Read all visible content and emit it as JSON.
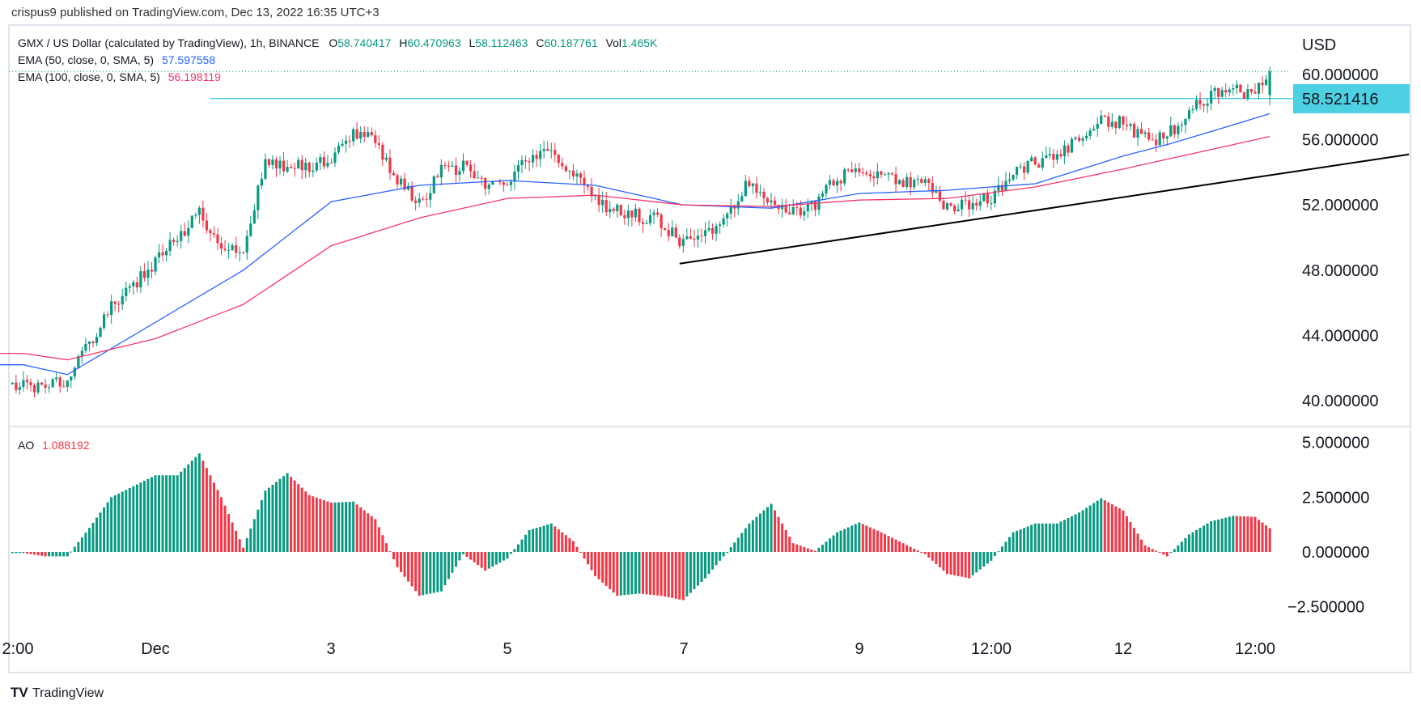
{
  "header": {
    "published": "crispus9 published on TradingView.com, Dec 13, 2022 16:35 UTC+3"
  },
  "legend": {
    "symbol": "GMX / US Dollar (calculated by TradingView), 1h, BINANCE",
    "open_label": "O",
    "open": "58.740417",
    "high_label": "H",
    "high": "60.470963",
    "low_label": "L",
    "low": "58.112463",
    "close_label": "C",
    "close": "60.187761",
    "vol_label": "Vol",
    "vol": "1.465K",
    "ema50_label": "EMA (50, close, 0, SMA, 5)",
    "ema50_value": "57.597558",
    "ema100_label": "EMA (100, close, 0, SMA, 5)",
    "ema100_value": "56.198119",
    "ao_label": "AO",
    "ao_value": "1.088192"
  },
  "price_axis": {
    "currency": "USD",
    "ticks": [
      "60.000000",
      "56.000000",
      "52.000000",
      "48.000000",
      "44.000000",
      "40.000000"
    ],
    "last_price_label": "58.521416"
  },
  "ao_axis": {
    "ticks": [
      "5.000000",
      "2.500000",
      "0.000000",
      "−2.500000"
    ]
  },
  "time_axis": {
    "ticks": [
      "2:00",
      "Dec",
      "3",
      "5",
      "7",
      "9",
      "12:00",
      "12",
      "12:00"
    ]
  },
  "footer": {
    "brand": "TradingView"
  },
  "colors": {
    "up": "#089981",
    "down": "#f23645",
    "ema50": "#2962ff",
    "ema100": "#f23669",
    "hline": "#4dd0e1",
    "trendline": "#000000",
    "text": "#131722"
  },
  "chart_data": {
    "type": "candlestick",
    "title": "GMX / US Dollar (calculated by TradingView), 1h, BINANCE",
    "interval": "1h",
    "ylabel": "USD",
    "ylim": [
      38.3,
      62.2
    ],
    "grid": false,
    "last_bar": {
      "time": "2022-12-13 16:00",
      "open": 58.740417,
      "high": 60.470963,
      "low": 58.112463,
      "close": 60.187761
    },
    "close_series": {
      "time": [
        "2022-11-29 12:00",
        "2022-11-29 18:00",
        "2022-11-30 00:00",
        "2022-11-30 06:00",
        "2022-11-30 12:00",
        "2022-11-30 18:00",
        "2022-12-01 00:00",
        "2022-12-01 06:00",
        "2022-12-01 12:00",
        "2022-12-01 18:00",
        "2022-12-02 00:00",
        "2022-12-02 06:00",
        "2022-12-02 12:00",
        "2022-12-02 18:00",
        "2022-12-03 00:00",
        "2022-12-03 06:00",
        "2022-12-03 12:00",
        "2022-12-03 18:00",
        "2022-12-04 00:00",
        "2022-12-04 06:00",
        "2022-12-04 12:00",
        "2022-12-04 18:00",
        "2022-12-05 00:00",
        "2022-12-05 06:00",
        "2022-12-05 12:00",
        "2022-12-05 18:00",
        "2022-12-06 00:00",
        "2022-12-06 06:00",
        "2022-12-06 12:00",
        "2022-12-06 18:00",
        "2022-12-07 00:00",
        "2022-12-07 06:00",
        "2022-12-07 12:00",
        "2022-12-07 18:00",
        "2022-12-08 00:00",
        "2022-12-08 06:00",
        "2022-12-08 12:00",
        "2022-12-08 18:00",
        "2022-12-09 00:00",
        "2022-12-09 06:00",
        "2022-12-09 12:00",
        "2022-12-09 18:00",
        "2022-12-10 00:00",
        "2022-12-10 06:00",
        "2022-12-10 12:00",
        "2022-12-10 18:00",
        "2022-12-11 00:00",
        "2022-12-11 06:00",
        "2022-12-11 12:00",
        "2022-12-11 18:00",
        "2022-12-12 00:00",
        "2022-12-12 06:00",
        "2022-12-12 12:00",
        "2022-12-12 18:00",
        "2022-12-13 00:00",
        "2022-12-13 06:00",
        "2022-12-13 12:00",
        "2022-12-13 16:00"
      ],
      "close": [
        41.0,
        40.9,
        41.3,
        43.5,
        45.8,
        47.1,
        48.5,
        50.0,
        51.5,
        49.5,
        49.4,
        54.5,
        54.5,
        54.3,
        55.0,
        56.5,
        56.0,
        53.5,
        52.0,
        54.0,
        54.4,
        53.0,
        53.4,
        54.8,
        55.2,
        54.0,
        52.3,
        51.6,
        51.3,
        51.0,
        49.5,
        50.3,
        51.4,
        53.5,
        52.4,
        51.6,
        52.0,
        53.6,
        54.3,
        53.8,
        53.4,
        53.2,
        51.9,
        52.1,
        52.4,
        54.2,
        54.6,
        54.8,
        56.0,
        57.2,
        57.0,
        56.0,
        56.2,
        57.6,
        58.8,
        59.0,
        58.8,
        60.19
      ],
      "ao": [
        -0.05,
        -0.2,
        -0.2,
        1.1,
        2.5,
        3.0,
        3.5,
        3.5,
        4.5,
        2.5,
        0.2,
        2.8,
        3.6,
        2.6,
        2.25,
        2.3,
        1.5,
        -0.7,
        -2.0,
        -1.8,
        -0.1,
        -0.85,
        -0.3,
        1.0,
        1.3,
        0.5,
        -1.1,
        -2.0,
        -1.9,
        -2.0,
        -2.2,
        -1.2,
        0.0,
        1.3,
        2.2,
        0.4,
        0.05,
        0.9,
        1.35,
        0.9,
        0.4,
        -0.1,
        -1.0,
        -1.2,
        -0.4,
        0.9,
        1.3,
        1.3,
        1.8,
        2.45,
        1.9,
        0.3,
        -0.2,
        0.8,
        1.4,
        1.65,
        1.6,
        1.088192
      ]
    },
    "ema_series": {
      "time": [
        "2022-11-29 12:00",
        "2022-11-30 00:00",
        "2022-12-01 00:00",
        "2022-12-02 00:00",
        "2022-12-03 00:00",
        "2022-12-04 00:00",
        "2022-12-05 00:00",
        "2022-12-06 00:00",
        "2022-12-07 00:00",
        "2022-12-08 00:00",
        "2022-12-09 00:00",
        "2022-12-10 00:00",
        "2022-12-11 00:00",
        "2022-12-12 00:00",
        "2022-12-12 12:00",
        "2022-12-13 00:00",
        "2022-12-13 16:00"
      ],
      "series": [
        {
          "name": "EMA (50, close, 0, SMA, 5)",
          "values": [
            42.2,
            41.6,
            44.8,
            48.0,
            52.2,
            53.2,
            53.5,
            53.2,
            52.0,
            51.8,
            52.7,
            52.9,
            53.3,
            55.0,
            55.7,
            56.5,
            57.597558
          ]
        },
        {
          "name": "EMA (100, close, 0, SMA, 5)",
          "values": [
            42.9,
            42.5,
            43.8,
            45.9,
            49.5,
            51.2,
            52.4,
            52.6,
            52.0,
            51.9,
            52.3,
            52.4,
            53.1,
            54.2,
            54.8,
            55.4,
            56.198119
          ]
        }
      ]
    },
    "ao_ylim": [
      -3.5,
      5.3
    ],
    "drawings": {
      "horizontal_line": {
        "price": 58.521416,
        "from": "2022-12-01 15:00"
      },
      "trend_line": {
        "from": {
          "time": "2022-12-06 23:00",
          "price": 48.4
        },
        "to": {
          "time": "2022-12-15 06:00",
          "price": 55.1
        }
      }
    }
  }
}
